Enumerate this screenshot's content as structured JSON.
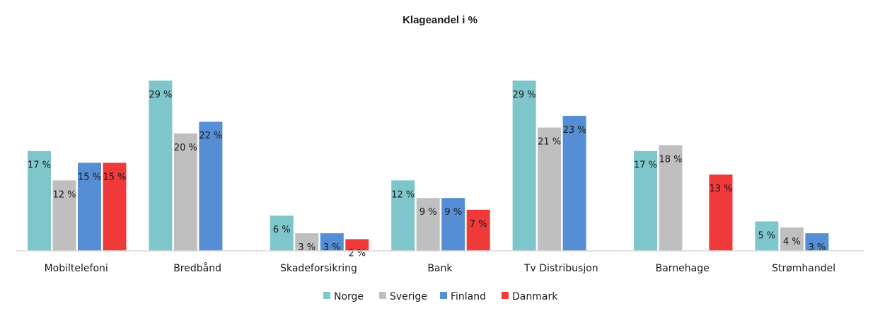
{
  "chart_data": {
    "type": "bar",
    "title": "Klageandel i %",
    "xlabel": "",
    "ylabel": "",
    "categories": [
      "Mobiltelefoni",
      "Bredbånd",
      "Skadeforsikring",
      "Bank",
      "Tv Distribusjon",
      "Barnehage",
      "Strømhandel"
    ],
    "series": [
      {
        "name": "Norge",
        "color": "#7ec6cb",
        "values": [
          17,
          29,
          6,
          12,
          29,
          17,
          5
        ],
        "labels": [
          "17 %",
          "29 %",
          "6 %",
          "12 %",
          "29 %",
          "17 %",
          "5 %"
        ]
      },
      {
        "name": "Sverige",
        "color": "#bfbfbf",
        "values": [
          12,
          20,
          3,
          9,
          21,
          18,
          4
        ],
        "labels": [
          "12 %",
          "20 %",
          "3 %",
          "9 %",
          "21 %",
          "18 %",
          "4 %"
        ]
      },
      {
        "name": "Finland",
        "color": "#558ed5",
        "values": [
          15,
          22,
          3,
          9,
          23,
          null,
          3
        ],
        "labels": [
          "15 %",
          "22 %",
          "3 %",
          "9 %",
          "23 %",
          null,
          "3 %"
        ]
      },
      {
        "name": "Danmark",
        "color": "#f03a3a",
        "values": [
          15,
          null,
          2,
          7,
          null,
          13,
          null
        ],
        "labels": [
          "15 %",
          null,
          "2 %",
          "7 %",
          null,
          "13 %",
          null
        ]
      }
    ],
    "ylim": [
      0,
      29
    ],
    "grid": false,
    "legend_position": "bottom"
  }
}
